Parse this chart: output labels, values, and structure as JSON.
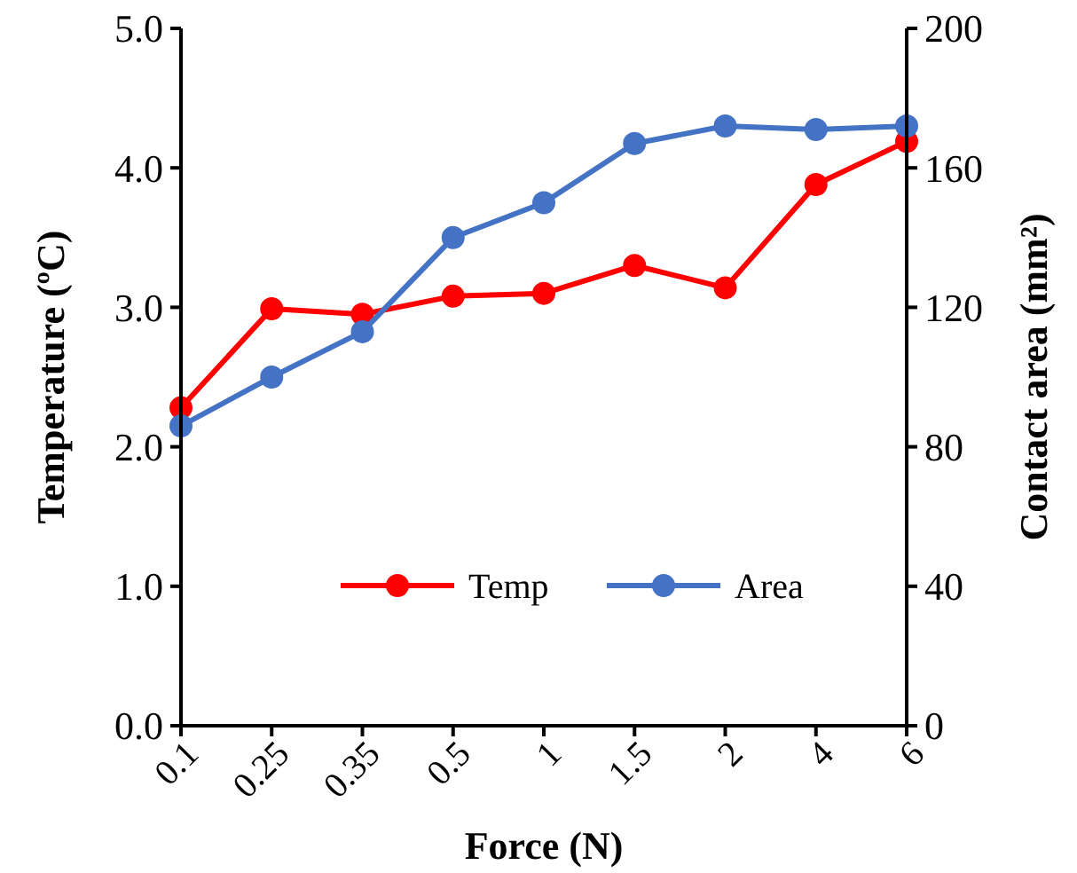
{
  "chart_data": {
    "type": "line",
    "xlabel": "Force (N)",
    "ylabel": "Temperature (ºC)",
    "y2label": "Contact area (mm²)",
    "categories": [
      "0.1",
      "0.25",
      "0.35",
      "0.5",
      "1",
      "1.5",
      "2",
      "4",
      "6"
    ],
    "series": [
      {
        "name": "Temp",
        "color": "#ff0000",
        "values": [
          2.28,
          2.99,
          2.95,
          3.08,
          3.1,
          3.3,
          3.14,
          3.88,
          4.19
        ]
      },
      {
        "name": "Area",
        "color": "#4472c4",
        "axis": "y2",
        "values": [
          86,
          100,
          113,
          140,
          150,
          167,
          172,
          171,
          172
        ]
      }
    ],
    "ylim": [
      0,
      5
    ],
    "yticks": [
      {
        "value": 0,
        "label": "0.0"
      },
      {
        "value": 1,
        "label": "1.0"
      },
      {
        "value": 2,
        "label": "2.0"
      },
      {
        "value": 3,
        "label": "3.0"
      },
      {
        "value": 4,
        "label": "4.0"
      },
      {
        "value": 5,
        "label": "5.0"
      }
    ],
    "y2lim": [
      0,
      200
    ],
    "y2ticks": [
      0,
      40,
      80,
      120,
      160,
      200
    ],
    "marker": "circle",
    "line_style": "solid",
    "legend": "bottom right",
    "grid": false
  }
}
